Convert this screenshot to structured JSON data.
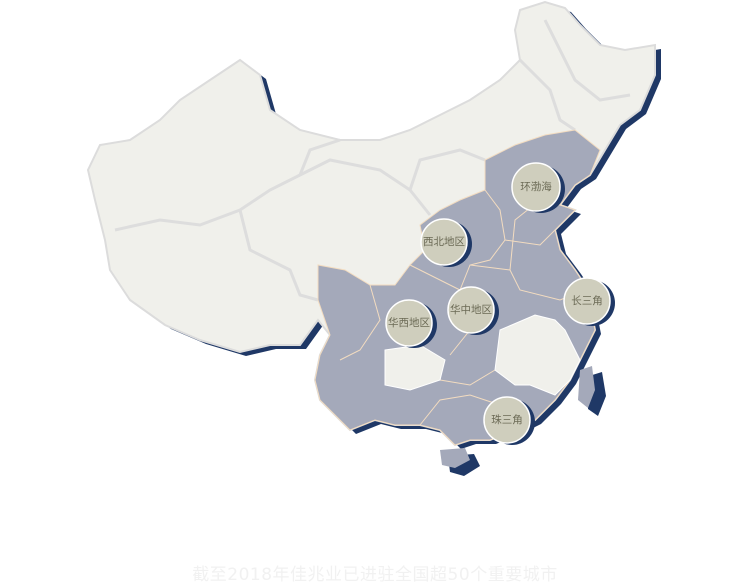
{
  "map": {
    "colors": {
      "land": "#f0f0eb",
      "covered_region": "#a4a9ba",
      "shadow": "#1f3866",
      "border": "#dcdcdc",
      "province_line": "#f3dcc0",
      "bubble_fill": "#cfcebd",
      "bubble_stroke": "#ffffff",
      "bubble_text": "#6b6a55"
    },
    "regions": [
      {
        "label": "环渤海"
      },
      {
        "label": "西北地区"
      },
      {
        "label": "华中地区"
      },
      {
        "label": "华西地区"
      },
      {
        "label": "长三角"
      },
      {
        "label": "珠三角"
      }
    ]
  },
  "caption": "截至2018年佳兆业已进驻全国超50个重要城市"
}
